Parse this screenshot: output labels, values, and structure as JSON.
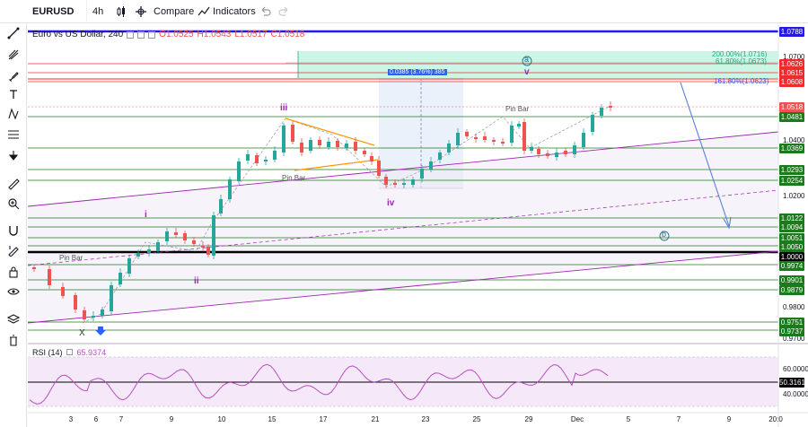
{
  "toolbar": {
    "symbol": "EURUSD",
    "interval": "4h",
    "compare_label": "Compare",
    "indicators_label": "Indicators"
  },
  "legend": {
    "title": "Euro vs US Dollar, 240",
    "open": "O1.0525",
    "high": "H1.0543",
    "low": "L1.0517",
    "close": "C1.0518"
  },
  "rsi": {
    "label": "RSI (14)",
    "value": "65.9374",
    "ticks": [
      "60.0000",
      "40.0000"
    ],
    "current": "50.3161"
  },
  "price_axis": {
    "ticks": [
      "1.0700",
      "1.0400",
      "1.0200",
      "0.9800",
      "0.9700"
    ],
    "labels": [
      {
        "text": "1.0788",
        "color": "#2418e6"
      },
      {
        "text": "1.0626",
        "color": "#ef2b2b"
      },
      {
        "text": "1.0615",
        "color": "#ef2b2b"
      },
      {
        "text": "1.0608",
        "color": "#ef2b2b"
      },
      {
        "text": "1.0518",
        "color": "#ef5350"
      },
      {
        "text": "1.0481",
        "color": "#1b7a1b"
      },
      {
        "text": "1.0369",
        "color": "#1b7a1b"
      },
      {
        "text": "1.0293",
        "color": "#1b7a1b"
      },
      {
        "text": "1.0254",
        "color": "#1b7a1b"
      },
      {
        "text": "1.0122",
        "color": "#1b7a1b"
      },
      {
        "text": "1.0094",
        "color": "#1b7a1b"
      },
      {
        "text": "1.0051",
        "color": "#1b7a1b"
      },
      {
        "text": "1.0050",
        "color": "#1b7a1b"
      },
      {
        "text": "1.0000",
        "color": "#000000"
      },
      {
        "text": "0.9974",
        "color": "#1b7a1b"
      },
      {
        "text": "0.9901",
        "color": "#1b7a1b"
      },
      {
        "text": "0.9879",
        "color": "#1b7a1b"
      },
      {
        "text": "0.9751",
        "color": "#1b7a1b"
      },
      {
        "text": "0.9737",
        "color": "#1b7a1b"
      }
    ]
  },
  "time_axis": [
    "3",
    "6",
    "7",
    "9",
    "10",
    "15",
    "17",
    "21",
    "23",
    "25",
    "29",
    "Dec",
    "5",
    "7",
    "9",
    "20:0"
  ],
  "annotations": {
    "measure": "0.0385 (3.76%) 385",
    "fib_200": "200.00%(1.0716)",
    "fib_618": "61.80%(1.0673)",
    "fib_1618": "161.80%(1.0623)",
    "pin_bar_1": "Pin Bar",
    "pin_bar_2": "Pin Bar",
    "pin_bar_3": "Pin Bar",
    "wave_x": "X",
    "wave_i": "i",
    "wave_ii": "ii",
    "wave_iii": "iii",
    "wave_iv": "iv",
    "wave_v": "v",
    "wave_a": "a",
    "wave_b": "b"
  },
  "colors": {
    "up": "#26a69a",
    "down": "#ef5350",
    "support": "#1b7a1b",
    "resistance": "#ef2b2b",
    "channel": "#9c27b0",
    "rsi": "#b84fc0",
    "accent": "#2962ff"
  }
}
